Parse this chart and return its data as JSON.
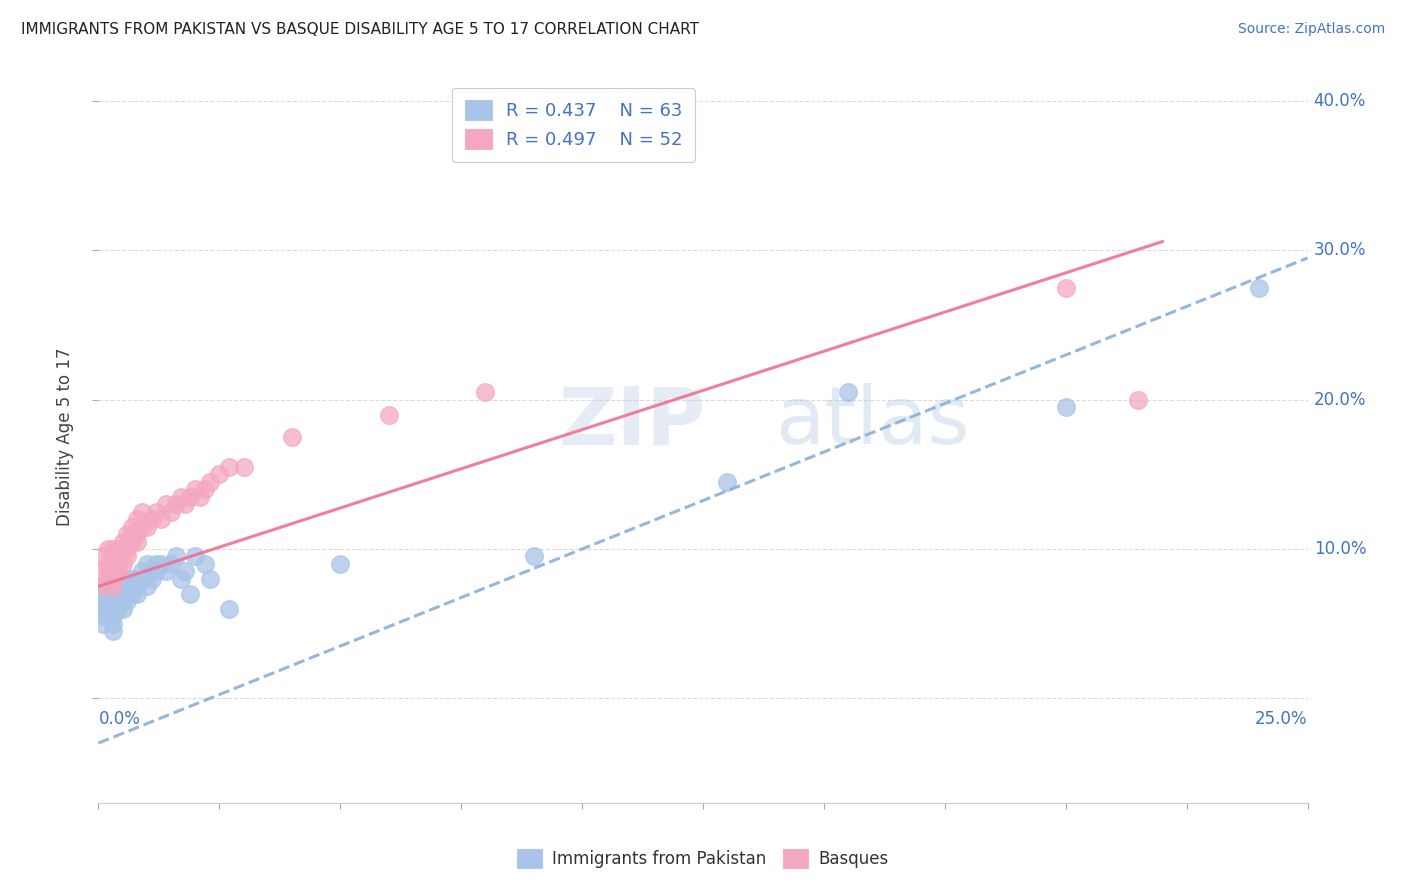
{
  "title": "IMMIGRANTS FROM PAKISTAN VS BASQUE DISABILITY AGE 5 TO 17 CORRELATION CHART",
  "source": "Source: ZipAtlas.com",
  "ylabel": "Disability Age 5 to 17",
  "xlim": [
    0.0,
    0.25
  ],
  "ylim": [
    -0.07,
    0.42
  ],
  "ytick_positions": [
    0.0,
    0.1,
    0.2,
    0.3,
    0.4
  ],
  "ytick_labels": [
    "",
    "10.0%",
    "20.0%",
    "30.0%",
    "40.0%"
  ],
  "xtick_positions": [
    0.0,
    0.025,
    0.05,
    0.075,
    0.1,
    0.125,
    0.15,
    0.175,
    0.2,
    0.225,
    0.25
  ],
  "legend_R1": "R = 0.437",
  "legend_N1": "N = 63",
  "legend_R2": "R = 0.497",
  "legend_N2": "N = 52",
  "blue_color": "#a8c4e8",
  "pink_color": "#f4a8c0",
  "blue_line_color": "#8ab0d8",
  "pink_line_color": "#f07090",
  "grid_color": "#d8d8d8",
  "watermark_color": "#c8d8f0",
  "blue_intercept": -0.03,
  "blue_slope": 1.3,
  "pink_intercept": 0.075,
  "pink_slope": 1.05,
  "blue_points_x": [
    0.001,
    0.001,
    0.001,
    0.001,
    0.001,
    0.001,
    0.002,
    0.002,
    0.002,
    0.002,
    0.002,
    0.002,
    0.003,
    0.003,
    0.003,
    0.003,
    0.003,
    0.003,
    0.003,
    0.003,
    0.004,
    0.004,
    0.004,
    0.004,
    0.004,
    0.005,
    0.005,
    0.005,
    0.005,
    0.006,
    0.006,
    0.006,
    0.006,
    0.007,
    0.007,
    0.007,
    0.008,
    0.008,
    0.009,
    0.009,
    0.01,
    0.01,
    0.011,
    0.011,
    0.012,
    0.012,
    0.013,
    0.014,
    0.015,
    0.016,
    0.017,
    0.018,
    0.019,
    0.02,
    0.022,
    0.023,
    0.027,
    0.05,
    0.09,
    0.13,
    0.155,
    0.2,
    0.24
  ],
  "blue_points_y": [
    0.065,
    0.07,
    0.06,
    0.075,
    0.055,
    0.05,
    0.065,
    0.06,
    0.07,
    0.055,
    0.075,
    0.08,
    0.06,
    0.065,
    0.07,
    0.055,
    0.05,
    0.045,
    0.075,
    0.08,
    0.065,
    0.07,
    0.06,
    0.075,
    0.08,
    0.07,
    0.06,
    0.075,
    0.065,
    0.07,
    0.075,
    0.065,
    0.08,
    0.07,
    0.075,
    0.08,
    0.075,
    0.07,
    0.08,
    0.085,
    0.075,
    0.09,
    0.085,
    0.08,
    0.09,
    0.085,
    0.09,
    0.085,
    0.09,
    0.095,
    0.08,
    0.085,
    0.07,
    0.095,
    0.09,
    0.08,
    0.06,
    0.09,
    0.095,
    0.145,
    0.205,
    0.195,
    0.275
  ],
  "pink_points_x": [
    0.001,
    0.001,
    0.001,
    0.002,
    0.002,
    0.002,
    0.002,
    0.003,
    0.003,
    0.003,
    0.003,
    0.003,
    0.004,
    0.004,
    0.004,
    0.004,
    0.005,
    0.005,
    0.005,
    0.006,
    0.006,
    0.006,
    0.007,
    0.007,
    0.007,
    0.008,
    0.008,
    0.008,
    0.009,
    0.009,
    0.01,
    0.011,
    0.012,
    0.013,
    0.014,
    0.015,
    0.016,
    0.017,
    0.018,
    0.019,
    0.02,
    0.021,
    0.022,
    0.023,
    0.025,
    0.027,
    0.03,
    0.04,
    0.06,
    0.08,
    0.2,
    0.215
  ],
  "pink_points_y": [
    0.075,
    0.085,
    0.095,
    0.08,
    0.085,
    0.09,
    0.1,
    0.075,
    0.085,
    0.08,
    0.095,
    0.1,
    0.09,
    0.085,
    0.095,
    0.1,
    0.09,
    0.1,
    0.105,
    0.095,
    0.1,
    0.11,
    0.105,
    0.11,
    0.115,
    0.105,
    0.11,
    0.12,
    0.115,
    0.125,
    0.115,
    0.12,
    0.125,
    0.12,
    0.13,
    0.125,
    0.13,
    0.135,
    0.13,
    0.135,
    0.14,
    0.135,
    0.14,
    0.145,
    0.15,
    0.155,
    0.155,
    0.175,
    0.19,
    0.205,
    0.275,
    0.2
  ]
}
